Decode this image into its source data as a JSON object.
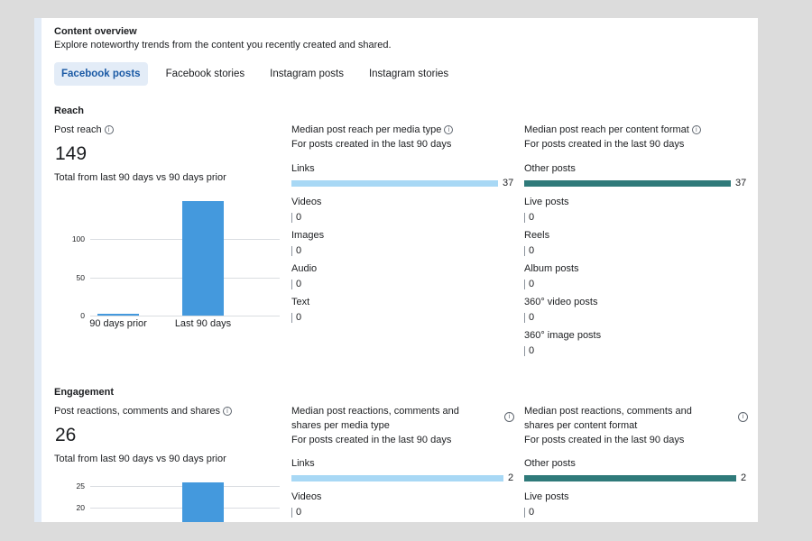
{
  "header": {
    "title": "Content overview",
    "subtitle": "Explore noteworthy trends from the content you recently created and shared."
  },
  "tabs": [
    {
      "label": "Facebook posts",
      "active": true
    },
    {
      "label": "Facebook stories",
      "active": false
    },
    {
      "label": "Instagram posts",
      "active": false
    },
    {
      "label": "Instagram stories",
      "active": false
    }
  ],
  "colors": {
    "media_bar": "#a8d8f5",
    "format_bar": "#2f7a7a",
    "chart_bar": "#4499dd",
    "accent": "#1b5aa5"
  },
  "reach": {
    "heading": "Reach",
    "total": {
      "label": "Post reach",
      "value": "149",
      "caption": "Total from last 90 days vs 90 days prior",
      "chart_data": {
        "type": "bar",
        "categories": [
          "90 days prior",
          "Last 90 days"
        ],
        "values": [
          2,
          149
        ],
        "ylim": [
          0,
          149
        ],
        "yticks": [
          "100",
          "50",
          "0"
        ]
      }
    },
    "media": {
      "title": "Median post reach per media type",
      "subtitle": "For posts created in the last 90 days",
      "max": 37,
      "items": [
        {
          "label": "Links",
          "value": "37"
        },
        {
          "label": "Videos",
          "value": "0"
        },
        {
          "label": "Images",
          "value": "0"
        },
        {
          "label": "Audio",
          "value": "0"
        },
        {
          "label": "Text",
          "value": "0"
        }
      ]
    },
    "format": {
      "title": "Median post reach per content format",
      "subtitle": "For posts created in the last 90 days",
      "max": 37,
      "items": [
        {
          "label": "Other posts",
          "value": "37"
        },
        {
          "label": "Live posts",
          "value": "0"
        },
        {
          "label": "Reels",
          "value": "0"
        },
        {
          "label": "Album posts",
          "value": "0"
        },
        {
          "label": "360° video posts",
          "value": "0"
        },
        {
          "label": "360° image posts",
          "value": "0"
        }
      ]
    }
  },
  "engagement": {
    "heading": "Engagement",
    "total": {
      "label": "Post reactions, comments and shares",
      "value": "26",
      "caption": "Total from last 90 days vs 90 days prior",
      "yticks": [
        "25",
        "20"
      ]
    },
    "media": {
      "title_line1": "Median post reactions, comments and",
      "title_line2": "shares per media type",
      "subtitle": "For posts created in the last 90 days",
      "max": 2,
      "items": [
        {
          "label": "Links",
          "value": "2"
        },
        {
          "label": "Videos",
          "value": "0"
        }
      ]
    },
    "format": {
      "title_line1": "Median post reactions, comments and",
      "title_line2": "shares per content format",
      "subtitle": "For posts created in the last 90 days",
      "max": 2,
      "items": [
        {
          "label": "Other posts",
          "value": "2"
        },
        {
          "label": "Live posts",
          "value": "0"
        }
      ]
    }
  }
}
